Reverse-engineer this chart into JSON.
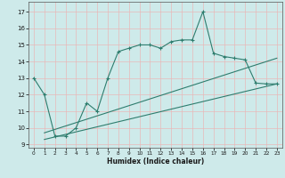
{
  "xlabel": "Humidex (Indice chaleur)",
  "bg_color": "#ceeaea",
  "grid_color": "#b0d8d8",
  "line_color": "#2e7d6e",
  "xlim": [
    -0.5,
    23.5
  ],
  "ylim": [
    8.8,
    17.6
  ],
  "yticks": [
    9,
    10,
    11,
    12,
    13,
    14,
    15,
    16,
    17
  ],
  "xticks": [
    0,
    1,
    2,
    3,
    4,
    5,
    6,
    7,
    8,
    9,
    10,
    11,
    12,
    13,
    14,
    15,
    16,
    17,
    18,
    19,
    20,
    21,
    22,
    23
  ],
  "main_x": [
    0,
    1,
    2,
    3,
    4,
    5,
    6,
    7,
    8,
    9,
    10,
    11,
    12,
    13,
    14,
    15,
    16,
    17,
    18,
    19,
    20,
    21,
    22,
    23
  ],
  "main_y": [
    13.0,
    12.0,
    9.5,
    9.5,
    10.0,
    11.5,
    11.0,
    13.0,
    14.6,
    14.8,
    15.0,
    15.0,
    14.8,
    15.2,
    15.3,
    15.3,
    17.0,
    14.5,
    14.3,
    14.2,
    14.1,
    12.7,
    12.65,
    12.65
  ],
  "trend1_x": [
    1,
    23
  ],
  "trend1_y": [
    9.3,
    12.65
  ],
  "trend2_x": [
    1,
    23
  ],
  "trend2_y": [
    9.7,
    14.2
  ],
  "figsize": [
    3.2,
    2.0
  ],
  "dpi": 100
}
